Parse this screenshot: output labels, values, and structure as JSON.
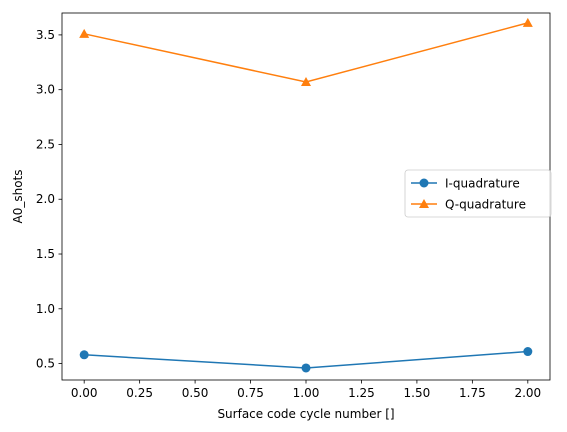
{
  "chart_data": {
    "type": "line",
    "title": "",
    "xlabel": "Surface code cycle number []",
    "ylabel": "A0_shots",
    "x": [
      0,
      1,
      2
    ],
    "xlim": [
      -0.1,
      2.1
    ],
    "ylim": [
      0.35,
      3.7
    ],
    "xticks": [
      0.0,
      0.25,
      0.5,
      0.75,
      1.0,
      1.25,
      1.5,
      1.75,
      2.0
    ],
    "xtick_labels": [
      "0.00",
      "0.25",
      "0.50",
      "0.75",
      "1.00",
      "1.25",
      "1.50",
      "1.75",
      "2.00"
    ],
    "yticks": [
      0.5,
      1.0,
      1.5,
      2.0,
      2.5,
      3.0,
      3.5
    ],
    "ytick_labels": [
      "0.5",
      "1.0",
      "1.5",
      "2.0",
      "2.5",
      "3.0",
      "3.5"
    ],
    "grid": false,
    "legend_position": "center-right",
    "series": [
      {
        "name": "I-quadrature",
        "values": [
          0.58,
          0.46,
          0.61
        ],
        "color": "#1f77b4",
        "marker": "circle"
      },
      {
        "name": "Q-quadrature",
        "values": [
          3.51,
          3.07,
          3.61
        ],
        "color": "#ff7f0e",
        "marker": "triangle"
      }
    ]
  }
}
